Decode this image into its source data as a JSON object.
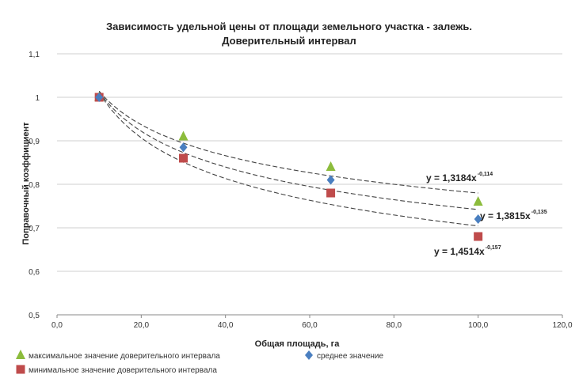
{
  "chart_data": {
    "type": "scatter",
    "title_lines": [
      "Зависимость удельной цены от площади земельного участка - залежь.",
      "Доверительный интервал"
    ],
    "xlabel": "Общая площадь, га",
    "ylabel": "Поправочный коэффициент",
    "xlim": [
      0,
      120
    ],
    "ylim": [
      0.5,
      1.1
    ],
    "x_ticks": [
      "0,0",
      "20,0",
      "40,0",
      "60,0",
      "80,0",
      "100,0",
      "120,0"
    ],
    "x_tick_values": [
      0,
      20,
      40,
      60,
      80,
      100,
      120
    ],
    "y_ticks": [
      "0,5",
      "0,6",
      "0,7",
      "0,8",
      "0,9",
      "1",
      "1,1"
    ],
    "y_tick_values": [
      0.5,
      0.6,
      0.7,
      0.8,
      0.9,
      1.0,
      1.1
    ],
    "grid": true,
    "legend_position": "bottom",
    "series": [
      {
        "name": "максимальное значение доверительного интервала",
        "marker": "triangle",
        "color": "#8cbc3c",
        "points": [
          [
            10,
            1.0
          ],
          [
            30,
            0.91
          ],
          [
            65,
            0.84
          ],
          [
            100,
            0.76
          ]
        ],
        "trend": {
          "a": 1.3184,
          "b": -0.114,
          "label": "y = 1,3184x",
          "exp_label": "-0,114"
        }
      },
      {
        "name": "среднее значение",
        "marker": "diamond",
        "color": "#4a7fc0",
        "points": [
          [
            10,
            1.0
          ],
          [
            30,
            0.885
          ],
          [
            65,
            0.81
          ],
          [
            100,
            0.72
          ]
        ],
        "trend": {
          "a": 1.3815,
          "b": -0.135,
          "label": "y = 1,3815x",
          "exp_label": "-0,135"
        }
      },
      {
        "name": "минимальное значение доверительного интервала",
        "marker": "square",
        "color": "#bf4b4b",
        "points": [
          [
            10,
            1.0
          ],
          [
            30,
            0.86
          ],
          [
            65,
            0.78
          ],
          [
            100,
            0.68
          ]
        ],
        "trend": {
          "a": 1.4514,
          "b": -0.157,
          "label": "y = 1,4514x",
          "exp_label": "-0,157"
        }
      }
    ]
  }
}
